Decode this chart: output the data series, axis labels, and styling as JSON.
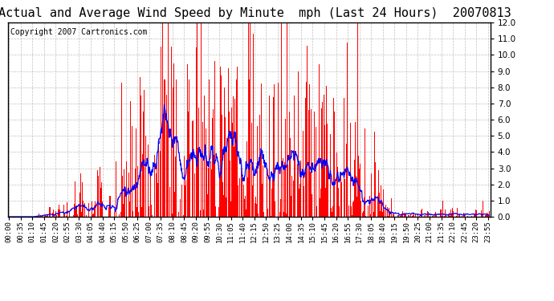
{
  "title": "Actual and Average Wind Speed by Minute  mph (Last 24 Hours)  20070813",
  "copyright": "Copyright 2007 Cartronics.com",
  "ylim": [
    0.0,
    12.0
  ],
  "yticks": [
    0.0,
    1.0,
    2.0,
    3.0,
    4.0,
    5.0,
    6.0,
    7.0,
    8.0,
    9.0,
    10.0,
    11.0,
    12.0
  ],
  "bar_color": "#ff0000",
  "line_color": "#0000ff",
  "bg_color": "#ffffff",
  "grid_color": "#b0b0b0",
  "title_fontsize": 11,
  "copyright_fontsize": 7,
  "tick_label_fontsize": 6.5
}
